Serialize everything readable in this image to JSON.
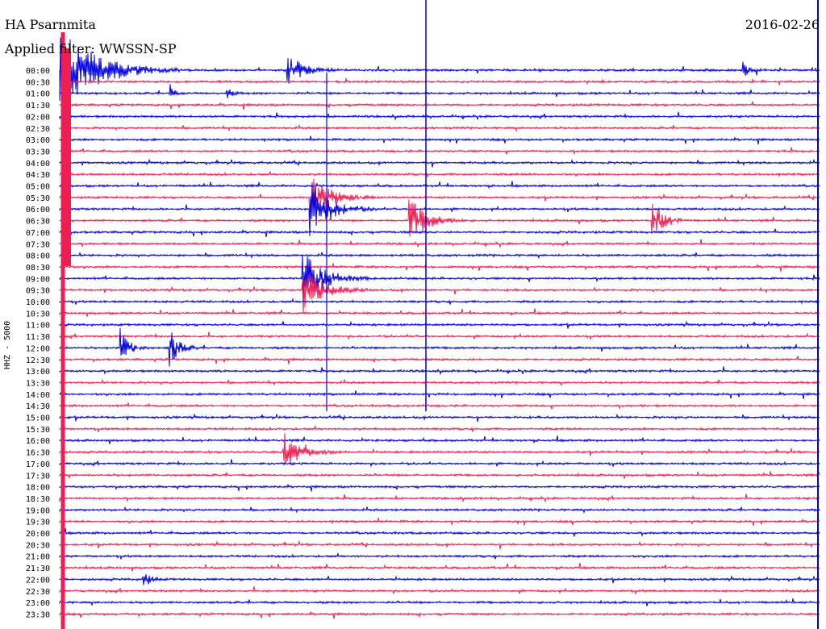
{
  "chart_data": {
    "type": "line",
    "title": "HA Psarnmita",
    "date": "2016-02-26",
    "filter_label": "Applied filter: WWSSN-SP",
    "ylabel": "HHZ - 5000",
    "row_labels": [
      "00:00",
      "00:30",
      "01:00",
      "01:30",
      "02:00",
      "02:30",
      "03:00",
      "03:30",
      "04:00",
      "04:30",
      "05:00",
      "05:30",
      "06:00",
      "06:30",
      "07:00",
      "07:30",
      "08:00",
      "08:30",
      "09:00",
      "09:30",
      "10:00",
      "10:30",
      "11:00",
      "11:30",
      "12:00",
      "12:30",
      "13:00",
      "13:30",
      "14:00",
      "14:30",
      "15:00",
      "15:30",
      "16:00",
      "16:30",
      "17:00",
      "17:30",
      "18:00",
      "18:30",
      "19:00",
      "19:30",
      "20:00",
      "20:30",
      "21:00",
      "21:30",
      "22:00",
      "22:30",
      "23:00",
      "23:30"
    ],
    "row_colors": [
      "#0000dd",
      "#ee1e50"
    ],
    "series": [
      {
        "row": 0,
        "events": [
          {
            "t": 0.3,
            "a": 3.0,
            "d": 12
          },
          {
            "t": 0.9,
            "a": 1.5,
            "d": 4
          },
          {
            "t": 0.0,
            "a": 10,
            "d": 25
          }
        ]
      },
      {
        "row": 2,
        "events": [
          {
            "t": 0.145,
            "a": 2.0,
            "d": 2
          },
          {
            "t": 0.22,
            "a": 1.2,
            "d": 3
          }
        ]
      },
      {
        "row": 11,
        "events": [
          {
            "t": 0.33,
            "a": 5,
            "d": 14
          }
        ]
      },
      {
        "row": 12,
        "events": [
          {
            "t": 0.33,
            "a": 6,
            "d": 14
          }
        ]
      },
      {
        "row": 13,
        "events": [
          {
            "t": 0.46,
            "a": 5,
            "d": 12
          },
          {
            "t": 0.78,
            "a": 4,
            "d": 8
          }
        ]
      },
      {
        "row": 18,
        "events": [
          {
            "t": 0.32,
            "a": 6,
            "d": 14
          }
        ]
      },
      {
        "row": 19,
        "events": [
          {
            "t": 0.32,
            "a": 5,
            "d": 14
          }
        ]
      },
      {
        "row": 24,
        "events": [
          {
            "t": 0.08,
            "a": 4,
            "d": 6
          },
          {
            "t": 0.145,
            "a": 4,
            "d": 6
          }
        ]
      },
      {
        "row": 33,
        "events": [
          {
            "t": 0.295,
            "a": 4,
            "d": 12
          }
        ]
      },
      {
        "row": 44,
        "events": [
          {
            "t": 0.11,
            "a": 2,
            "d": 4
          }
        ]
      }
    ],
    "ylim": [
      0,
      47
    ]
  }
}
